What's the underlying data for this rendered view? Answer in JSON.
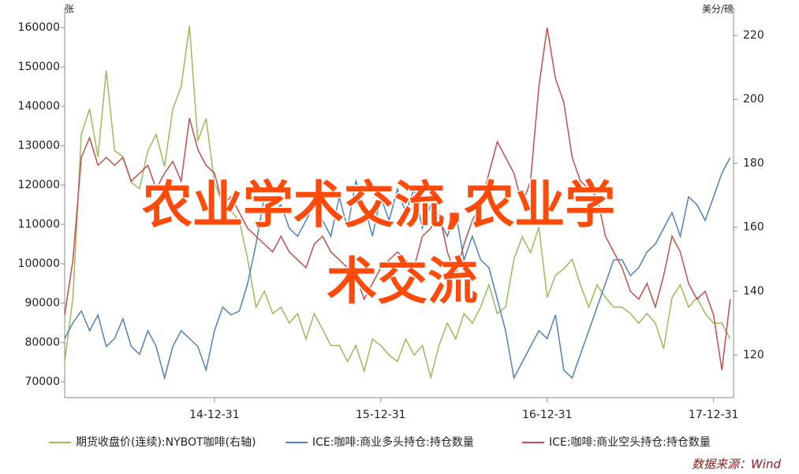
{
  "chart_data": {
    "type": "line",
    "y_label": "张",
    "y2_label": "美分/磅",
    "annotation": [
      "农业学术交流,农业学",
      "术交流"
    ],
    "source": "数据来源：Wind",
    "x": [
      2014.1,
      2014.15,
      2014.2,
      2014.25,
      2014.3,
      2014.35,
      2014.4,
      2014.45,
      2014.5,
      2014.55,
      2014.6,
      2014.65,
      2014.7,
      2014.75,
      2014.8,
      2014.85,
      2014.9,
      2014.95,
      2015.0,
      2015.05,
      2015.1,
      2015.15,
      2015.2,
      2015.25,
      2015.3,
      2015.35,
      2015.4,
      2015.45,
      2015.5,
      2015.55,
      2015.6,
      2015.65,
      2015.7,
      2015.75,
      2015.8,
      2015.85,
      2015.9,
      2015.95,
      2016.0,
      2016.05,
      2016.1,
      2016.15,
      2016.2,
      2016.25,
      2016.3,
      2016.35,
      2016.4,
      2016.45,
      2016.5,
      2016.55,
      2016.6,
      2016.65,
      2016.7,
      2016.75,
      2016.8,
      2016.85,
      2016.9,
      2016.95,
      2017.0,
      2017.05,
      2017.1,
      2017.15,
      2017.2,
      2017.25,
      2017.3,
      2017.35,
      2017.4,
      2017.45,
      2017.5,
      2017.55,
      2017.6,
      2017.65,
      2017.7,
      2017.75,
      2017.8,
      2017.85,
      2017.9,
      2017.95,
      2018.0,
      2018.05,
      2018.1
    ],
    "xlim": [
      2014.1,
      2018.12
    ],
    "xticks": [
      {
        "value": 2015.0,
        "label": "14-12-31"
      },
      {
        "value": 2016.0,
        "label": "15-12-31"
      },
      {
        "value": 2017.0,
        "label": "16-12-31"
      },
      {
        "value": 2018.0,
        "label": "17-12-31"
      }
    ],
    "ylim": [
      66000,
      165000
    ],
    "yticks": [
      70000,
      80000,
      90000,
      100000,
      110000,
      120000,
      130000,
      140000,
      150000,
      160000
    ],
    "y2lim": [
      106.7,
      228.6
    ],
    "y2ticks": [
      120,
      140,
      160,
      180,
      200,
      220
    ],
    "series": [
      {
        "name": "期货收盘价(连续):NYBOT咖啡(右轴)",
        "color": "#9bbb59",
        "axis": "y2",
        "values": [
          118,
          138,
          189,
          197,
          182,
          209,
          184,
          182,
          174,
          172,
          184,
          189,
          179,
          197,
          204,
          223,
          187,
          194,
          174,
          167,
          165,
          162,
          150,
          135,
          140,
          133,
          135,
          130,
          133,
          125,
          133,
          128,
          123,
          123,
          118,
          123,
          115,
          125,
          123,
          120,
          118,
          125,
          120,
          123,
          113,
          123,
          130,
          125,
          133,
          130,
          135,
          142,
          133,
          135,
          150,
          157,
          152,
          160,
          138,
          145,
          147,
          150,
          142,
          135,
          142,
          138,
          135,
          135,
          133,
          130,
          133,
          130,
          122,
          138,
          142,
          135,
          138,
          133,
          130,
          130,
          125
        ]
      },
      {
        "name": "ICE:咖啡:商业多头持仓:持仓数量",
        "color": "#4f81bd",
        "values": [
          81000,
          85000,
          88000,
          83000,
          87000,
          79000,
          81000,
          86000,
          79000,
          77000,
          83000,
          79000,
          71000,
          79000,
          83000,
          81000,
          79000,
          73000,
          83000,
          89000,
          87000,
          88000,
          95000,
          105000,
          117000,
          113000,
          115000,
          109000,
          107000,
          111000,
          115000,
          111000,
          107000,
          117000,
          109000,
          121000,
          115000,
          107000,
          117000,
          111000,
          119000,
          113000,
          119000,
          109000,
          115000,
          111000,
          107000,
          113000,
          101000,
          107000,
          101000,
          99000,
          91000,
          83000,
          71000,
          75000,
          79000,
          83000,
          81000,
          87000,
          73000,
          71000,
          77000,
          83000,
          89000,
          95000,
          101000,
          101000,
          97000,
          99000,
          103000,
          105000,
          109000,
          113000,
          107000,
          117000,
          115000,
          111000,
          117000,
          123000,
          127000
        ]
      },
      {
        "name": "ICE:咖啡:商业空头持仓:持仓数量",
        "color": "#c0504d",
        "values": [
          87000,
          101000,
          127000,
          132000,
          125000,
          127000,
          125000,
          127000,
          121000,
          123000,
          125000,
          119000,
          123000,
          126000,
          121000,
          137000,
          129000,
          125000,
          123000,
          115000,
          117000,
          113000,
          109000,
          107000,
          105000,
          103000,
          107000,
          103000,
          101000,
          99000,
          105000,
          107000,
          103000,
          101000,
          99000,
          97000,
          91000,
          95000,
          99000,
          101000,
          103000,
          101000,
          99000,
          107000,
          109000,
          113000,
          103000,
          97000,
          105000,
          111000,
          115000,
          123000,
          131000,
          127000,
          123000,
          115000,
          121000,
          145000,
          160000,
          147000,
          141000,
          127000,
          121000,
          119000,
          117000,
          107000,
          103000,
          99000,
          93000,
          91000,
          95000,
          89000,
          97000,
          107000,
          103000,
          95000,
          91000,
          93000,
          87000,
          73000,
          91000
        ]
      }
    ]
  }
}
